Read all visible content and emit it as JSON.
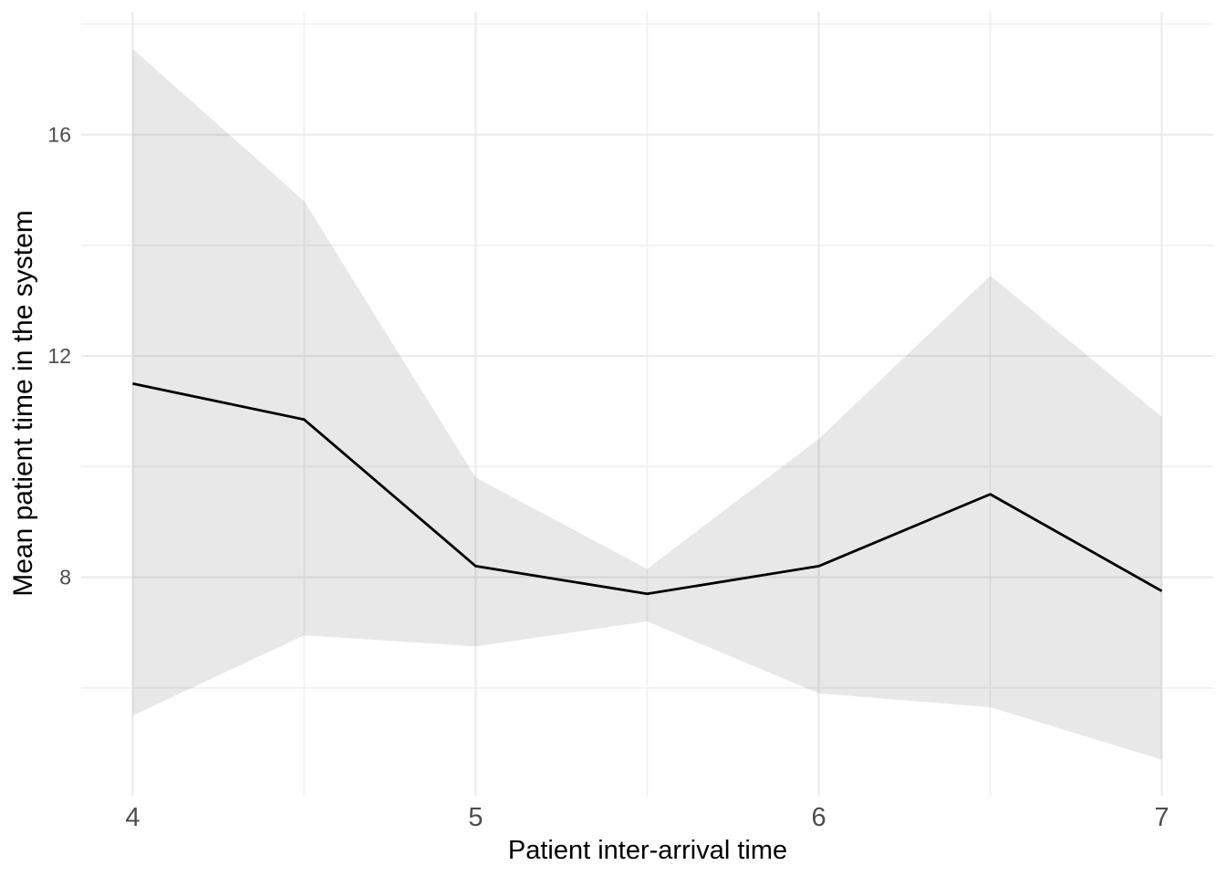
{
  "chart_data": {
    "type": "line",
    "title": "",
    "xlabel": "Patient inter-arrival time",
    "ylabel": "Mean patient time in the system",
    "x": [
      4,
      4.5,
      5,
      5.5,
      6,
      6.5,
      7
    ],
    "series": [
      {
        "name": "mean",
        "kind": "line",
        "values": [
          11.5,
          10.85,
          8.2,
          7.7,
          8.2,
          9.5,
          7.75
        ]
      },
      {
        "name": "ci-upper",
        "kind": "ribbon-upper",
        "values": [
          17.55,
          14.8,
          9.8,
          8.15,
          10.5,
          13.45,
          10.9
        ]
      },
      {
        "name": "ci-lower",
        "kind": "ribbon-lower",
        "values": [
          5.5,
          6.95,
          6.75,
          7.2,
          5.9,
          5.65,
          4.7
        ]
      }
    ],
    "x_axis": {
      "tick_values": [
        4,
        5,
        6,
        7
      ],
      "tick_labels": [
        "4",
        "5",
        "6",
        "7"
      ],
      "minor_tick_values": [
        4.5,
        5.5,
        6.5
      ],
      "range": [
        3.85,
        7.15
      ]
    },
    "y_axis": {
      "tick_values": [
        8,
        12,
        16
      ],
      "tick_labels": [
        "8",
        "12",
        "16"
      ],
      "minor_tick_values": [
        6,
        10,
        14,
        18
      ],
      "range": [
        4.05,
        18.22
      ]
    },
    "grid": "major+minor",
    "legend": false,
    "style": {
      "background": "#FFFFFF",
      "line_color": "#000000",
      "line_width": 2.8,
      "ribbon_fill": "rgba(0,0,0,0.09)",
      "grid_major_color": "#EBEBEB",
      "grid_minor_color": "#F1F1F1",
      "grid_major_width": 2.2,
      "grid_minor_width": 1.8,
      "tick_label_color": "#4D4D4D",
      "axis_title_color": "#000000"
    }
  }
}
